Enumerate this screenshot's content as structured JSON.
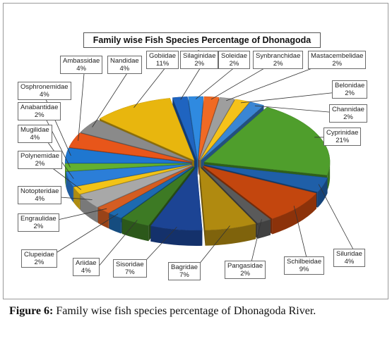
{
  "chart_data": {
    "type": "pie",
    "title": "Family wise Fish Species Percentage of Dhonagoda River",
    "slices": [
      {
        "name": "Cyprinidae",
        "value": 21,
        "label": "21%",
        "color": "#4f9e2c"
      },
      {
        "name": "Siluridae",
        "value": 4,
        "label": "4%",
        "color": "#1f5fa8"
      },
      {
        "name": "Schilbeidae",
        "value": 9,
        "label": "9%",
        "color": "#c3460e"
      },
      {
        "name": "Pangasidae",
        "value": 2,
        "label": "2%",
        "color": "#5a5a5a"
      },
      {
        "name": "Bagridae",
        "value": 7,
        "label": "7%",
        "color": "#b08a10"
      },
      {
        "name": "Sisoridae",
        "value": 7,
        "label": "7%",
        "color": "#1c4494"
      },
      {
        "name": "Ariidae",
        "value": 4,
        "label": "4%",
        "color": "#3d7a24"
      },
      {
        "name": "Clupeidae",
        "value": 2,
        "label": "2%",
        "color": "#1d6ab0"
      },
      {
        "name": "Engraulidae",
        "value": 2,
        "label": "2%",
        "color": "#d45d22"
      },
      {
        "name": "Notopteridae",
        "value": 4,
        "label": "4%",
        "color": "#a8a8a8"
      },
      {
        "name": "Polynemidae",
        "value": 2,
        "label": "2%",
        "color": "#f2c318"
      },
      {
        "name": "Mugilidae",
        "value": 4,
        "label": "4%",
        "color": "#2b7ed8"
      },
      {
        "name": "Anabantidae",
        "value": 2,
        "label": "2%",
        "color": "#63b02f"
      },
      {
        "name": "Osphronemidae",
        "value": 4,
        "label": "4%",
        "color": "#1f77d0"
      },
      {
        "name": "Ambassidae",
        "value": 4,
        "label": "4%",
        "color": "#e8561a"
      },
      {
        "name": "Nandidae",
        "value": 4,
        "label": "4%",
        "color": "#8a8a8a"
      },
      {
        "name": "Gobiidae",
        "value": 11,
        "label": "11%",
        "color": "#e8b60e"
      },
      {
        "name": "Silaginidae",
        "value": 2,
        "label": "2%",
        "color": "#1f64c0"
      },
      {
        "name": "Soleidae",
        "value": 2,
        "label": "2%",
        "color": "#2f8ae0"
      },
      {
        "name": "Synbranchidae",
        "value": 2,
        "label": "2%",
        "color": "#f06a24"
      },
      {
        "name": "Mastacembelidae",
        "value": 2,
        "label": "2%",
        "color": "#9e9e9e"
      },
      {
        "name": "Belonidae",
        "value": 2,
        "label": "2%",
        "color": "#f5c21a"
      },
      {
        "name": "Channidae",
        "value": 2,
        "label": "2%",
        "color": "#3a86d4"
      }
    ],
    "legend": "callout-labels"
  },
  "caption": {
    "label": "Figure 6:",
    "text": " Family wise fish species percentage of Dhonagoda River."
  }
}
